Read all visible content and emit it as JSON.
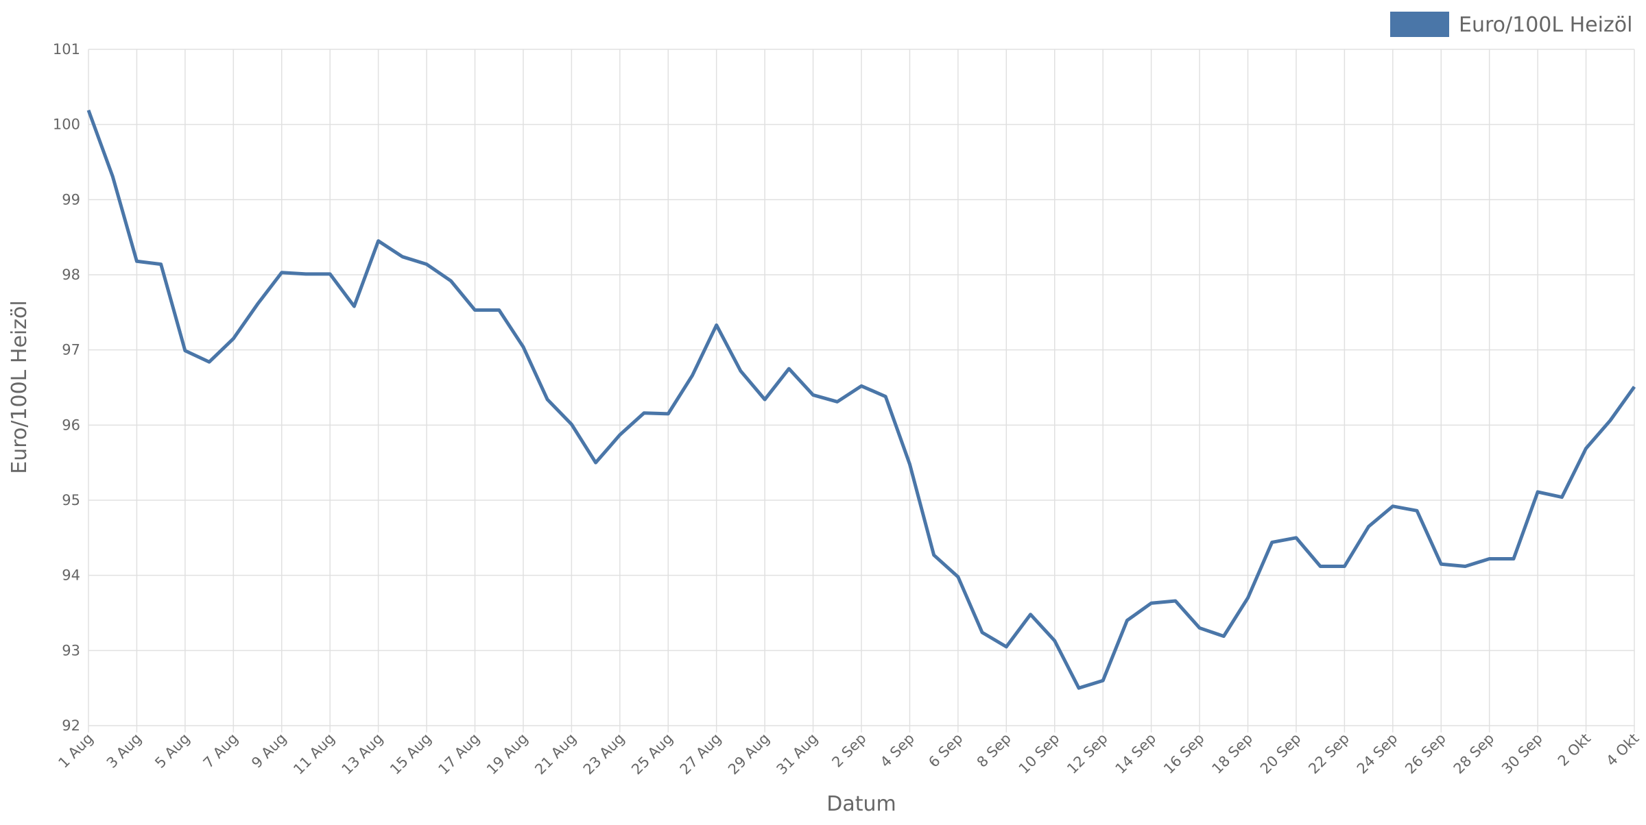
{
  "chart_data": {
    "type": "line",
    "x_label": "Datum",
    "y_label": "Euro/100L Heizöl",
    "categories": [
      "1 Aug",
      null,
      "3 Aug",
      null,
      "5 Aug",
      null,
      "7 Aug",
      null,
      "9 Aug",
      null,
      "11 Aug",
      null,
      "13 Aug",
      null,
      "15 Aug",
      null,
      "17 Aug",
      null,
      "19 Aug",
      null,
      "21 Aug",
      null,
      "23 Aug",
      null,
      "25 Aug",
      null,
      "27 Aug",
      null,
      "29 Aug",
      null,
      "31 Aug",
      null,
      "2 Sep",
      null,
      "4 Sep",
      null,
      "6 Sep",
      null,
      "8 Sep",
      null,
      "10 Sep",
      null,
      "12 Sep",
      null,
      "14 Sep",
      null,
      "16 Sep",
      null,
      "18 Sep",
      null,
      "20 Sep",
      null,
      "22 Sep",
      null,
      "24 Sep",
      null,
      "26 Sep",
      null,
      "28 Sep",
      null,
      "30 Sep",
      null,
      "2 Okt",
      null,
      "4 Okt"
    ],
    "series": [
      {
        "name": "Euro/100L Heizöl",
        "color": "#4a76a8",
        "values": [
          100.19,
          99.31,
          98.18,
          98.14,
          96.99,
          96.84,
          97.15,
          97.61,
          98.03,
          98.01,
          98.01,
          97.58,
          98.45,
          98.24,
          98.14,
          97.92,
          97.53,
          97.53,
          97.04,
          96.34,
          96.01,
          95.5,
          95.87,
          96.16,
          96.15,
          96.66,
          97.33,
          96.72,
          96.34,
          96.75,
          96.4,
          96.31,
          96.52,
          96.38,
          95.48,
          94.27,
          93.98,
          93.24,
          93.05,
          93.48,
          93.13,
          92.5,
          92.6,
          93.4,
          93.63,
          93.66,
          93.3,
          93.19,
          93.7,
          94.44,
          94.5,
          94.12,
          94.12,
          94.65,
          94.92,
          94.86,
          94.15,
          94.12,
          94.22,
          94.22,
          95.11,
          95.04,
          95.69,
          96.06,
          96.51
        ]
      }
    ],
    "ylim": [
      92,
      101
    ],
    "yticks": [
      92,
      93,
      94,
      95,
      96,
      97,
      98,
      99,
      100,
      101
    ],
    "grid": true,
    "legend": "top-right"
  }
}
